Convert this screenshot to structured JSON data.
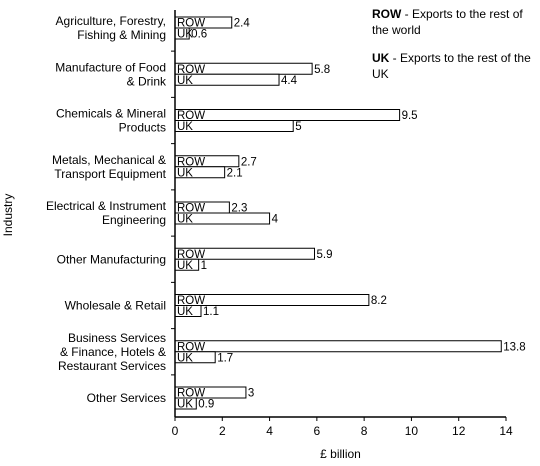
{
  "chart_data": {
    "type": "bar",
    "orientation": "horizontal",
    "categories": [
      [
        "Agriculture, Forestry,",
        "Fishing & Mining"
      ],
      [
        "Manufacture of Food",
        "& Drink"
      ],
      [
        "Chemicals & Mineral",
        "Products"
      ],
      [
        "Metals, Mechanical &",
        "Transport Equipment"
      ],
      [
        "Electrical & Instrument",
        "Engineering"
      ],
      [
        "Other Manufacturing"
      ],
      [
        "Wholesale & Retail"
      ],
      [
        "Business Services",
        "& Finance, Hotels &",
        "Restaurant Services"
      ],
      [
        "Other Services"
      ]
    ],
    "series": [
      {
        "name": "ROW",
        "values": [
          2.4,
          5.8,
          9.5,
          2.7,
          2.3,
          5.9,
          8.2,
          13.8,
          3
        ],
        "value_labels": [
          "2.4",
          "5.8",
          "9.5",
          "2.7",
          "2.3",
          "5.9",
          "8.2",
          "13.8",
          "3"
        ]
      },
      {
        "name": "UK",
        "values": [
          0.6,
          4.4,
          5,
          2.1,
          4,
          1,
          1.1,
          1.7,
          0.9
        ],
        "value_labels": [
          "0.6",
          "4.4",
          "5",
          "2.1",
          "4",
          "1",
          "1.1",
          "1.7",
          "0.9"
        ]
      }
    ],
    "xlabel": "£ billion",
    "ylabel": "Industry",
    "xlim": [
      0,
      14
    ],
    "xticks": [
      "0",
      "2",
      "4",
      "6",
      "8",
      "10",
      "12",
      "14"
    ],
    "grid": false,
    "legend": [
      {
        "key": "ROW",
        "text": " - Exports to the rest of the world"
      },
      {
        "key": "UK",
        "text": " - Exports to the rest of the UK"
      }
    ],
    "legend_position": "top-right",
    "colors": {
      "bar_fill": "#ffffff",
      "bar_stroke": "#000000",
      "axis": "#000000"
    }
  }
}
